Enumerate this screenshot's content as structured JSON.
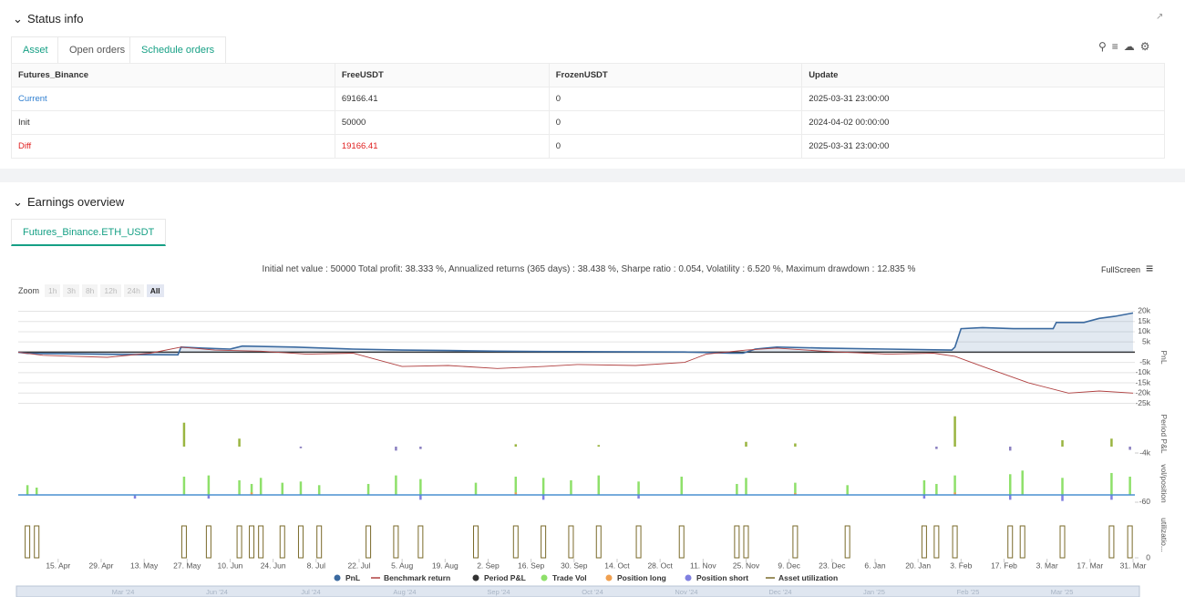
{
  "status": {
    "title": "Status info",
    "tabs": [
      "Asset",
      "Open orders",
      "Schedule orders"
    ],
    "table": {
      "header": [
        "Futures_Binance",
        "FreeUSDT",
        "FrozenUSDT",
        "Update"
      ],
      "rows": [
        [
          "Current",
          "69166.41",
          "0",
          "2025-03-31 23:00:00"
        ],
        [
          "Init",
          "50000",
          "0",
          "2024-04-02 00:00:00"
        ],
        [
          "Diff",
          "19166.41",
          "0",
          "2025-03-31 23:00:00"
        ]
      ]
    }
  },
  "earnings": {
    "title": "Earnings overview",
    "tab": "Futures_Binance.ETH_USDT",
    "summary": "Initial net value : 50000 Total profit: 38.333 %, Annualized returns (365 days) : 38.438 %, Sharpe ratio : 0.054, Volatility : 6.520 %, Maximum drawdown : 12.835 %",
    "fullscreen": "FullScreen",
    "zoom_label": "Zoom",
    "zoom_buttons": [
      "1h",
      "3h",
      "8h",
      "12h",
      "24h",
      "All"
    ],
    "navigator": [
      "Mar '24",
      "Jun '24",
      "Jul '24",
      "Aug '24",
      "Sep '24",
      "Oct '24",
      "Nov '24",
      "Dec '24",
      "Jan '25",
      "Feb '25",
      "Mar '25"
    ]
  },
  "chart_data": [
    {
      "type": "line",
      "ylabel": "PnL",
      "ylim": [
        -27000,
        22000
      ],
      "grid": true,
      "yticks": [
        {
          "value": 20000,
          "label": "20k"
        },
        {
          "value": 15000,
          "label": "15k"
        },
        {
          "value": 10000,
          "label": "10k"
        },
        {
          "value": 5000,
          "label": "5k"
        },
        {
          "value": -5000,
          "label": "-5k"
        },
        {
          "value": -10000,
          "label": "-10k"
        },
        {
          "value": -15000,
          "label": "-15k"
        },
        {
          "value": -20000,
          "label": "-20k"
        },
        {
          "value": -25000,
          "label": "-25k"
        }
      ],
      "series": [
        {
          "name": "PnL",
          "color": "#3b6aa0",
          "area": true,
          "legend_symbol": "circle",
          "x": [
            "2024-04-02",
            "2024-04-05",
            "2024-05-10",
            "2024-05-24",
            "2024-05-25",
            "2024-06-01",
            "2024-06-10",
            "2024-06-14",
            "2024-07-01",
            "2024-07-20",
            "2024-08-05",
            "2024-08-20",
            "2024-09-05",
            "2024-09-20",
            "2024-10-10",
            "2024-11-05",
            "2024-11-20",
            "2024-11-24",
            "2024-11-28",
            "2024-12-05",
            "2024-12-20",
            "2025-01-10",
            "2025-01-31",
            "2025-02-01",
            "2025-02-03",
            "2025-02-10",
            "2025-02-20",
            "2025-03-05",
            "2025-03-06",
            "2025-03-15",
            "2025-03-20",
            "2025-03-25",
            "2025-03-31"
          ],
          "values": [
            0,
            -600,
            -1200,
            -1300,
            2500,
            2000,
            1500,
            3000,
            2500,
            1500,
            1000,
            800,
            500,
            300,
            200,
            100,
            -500,
            -500,
            1500,
            2500,
            2000,
            1500,
            1000,
            2500,
            11500,
            12000,
            11500,
            11500,
            14500,
            14500,
            16500,
            17500,
            19166
          ]
        },
        {
          "name": "Benchmark return",
          "color": "#b04040",
          "legend_symbol": "line",
          "x": [
            "2024-04-02",
            "2024-04-10",
            "2024-04-20",
            "2024-05-01",
            "2024-05-15",
            "2024-05-25",
            "2024-06-05",
            "2024-06-20",
            "2024-07-05",
            "2024-07-20",
            "2024-08-05",
            "2024-08-20",
            "2024-09-05",
            "2024-09-20",
            "2024-10-01",
            "2024-10-20",
            "2024-11-05",
            "2024-11-12",
            "2024-11-25",
            "2024-12-05",
            "2024-12-20",
            "2025-01-10",
            "2025-01-25",
            "2025-02-01",
            "2025-02-10",
            "2025-02-25",
            "2025-03-10",
            "2025-03-20",
            "2025-03-31"
          ],
          "values": [
            0,
            -1500,
            -2000,
            -2500,
            -500,
            2500,
            1000,
            500,
            -1000,
            -500,
            -7000,
            -6500,
            -8000,
            -7000,
            -6000,
            -6500,
            -5000,
            -1000,
            1000,
            2000,
            500,
            -1000,
            -500,
            -2000,
            -7000,
            -15000,
            -20000,
            -19000,
            -20000
          ]
        }
      ]
    },
    {
      "type": "bar",
      "ylabel": "Period P&L",
      "ylim": [
        -5700,
        21700
      ],
      "yticks": [
        {
          "value": -4000,
          "label": "-4k"
        }
      ],
      "series": [
        {
          "name": "Period P&L",
          "color": "#333333",
          "up_color": "#9ab541",
          "down_color": "#8a7fc0",
          "legend_symbol": "circle",
          "x": [
            "2024-05-26",
            "2024-06-13",
            "2024-07-03",
            "2024-08-03",
            "2024-08-11",
            "2024-09-11",
            "2024-10-08",
            "2024-11-25",
            "2024-12-11",
            "2025-01-26",
            "2025-02-01",
            "2025-02-19",
            "2025-03-08",
            "2025-03-24",
            "2025-03-30"
          ],
          "values": [
            15000,
            5000,
            -1000,
            -2500,
            -1500,
            1500,
            1000,
            3000,
            2000,
            -1500,
            19000,
            -2500,
            4000,
            5000,
            -2000
          ]
        }
      ]
    },
    {
      "type": "bar",
      "ylabel": "vol/position",
      "ylim": [
        -90,
        277
      ],
      "yticks": [
        -60
      ],
      "series": [
        {
          "name": "Trade Vol",
          "color": "#8ee06a",
          "legend_symbol": "circle",
          "x": [
            "2024-04-05",
            "2024-04-08",
            "2024-05-26",
            "2024-06-03",
            "2024-06-13",
            "2024-06-17",
            "2024-06-20",
            "2024-06-27",
            "2024-07-03",
            "2024-07-09",
            "2024-07-25",
            "2024-08-03",
            "2024-08-11",
            "2024-08-29",
            "2024-09-11",
            "2024-09-20",
            "2024-09-29",
            "2024-10-08",
            "2024-10-21",
            "2024-11-04",
            "2024-11-22",
            "2024-11-25",
            "2024-12-11",
            "2024-12-28",
            "2025-01-22",
            "2025-01-26",
            "2025-02-01",
            "2025-02-19",
            "2025-02-23",
            "2025-03-08",
            "2025-03-24",
            "2025-03-30"
          ],
          "values": [
            80,
            60,
            150,
            160,
            120,
            90,
            140,
            100,
            110,
            80,
            90,
            160,
            130,
            100,
            150,
            140,
            120,
            160,
            110,
            150,
            90,
            140,
            100,
            80,
            120,
            90,
            160,
            170,
            200,
            140,
            180,
            150
          ]
        },
        {
          "name": "Position long",
          "color": "#f0a050",
          "legend_symbol": "circle",
          "x": [
            "2024-06-17",
            "2024-09-11",
            "2024-12-11",
            "2025-02-01"
          ],
          "values": [
            20,
            20,
            15,
            20
          ]
        },
        {
          "name": "Position short",
          "color": "#8080e0",
          "legend_symbol": "circle",
          "x": [
            "2024-05-10",
            "2024-06-03",
            "2024-08-11",
            "2024-09-20",
            "2024-10-21",
            "2025-01-22",
            "2025-02-19",
            "2025-03-08",
            "2025-03-24"
          ],
          "values": [
            -30,
            -30,
            -40,
            -40,
            -30,
            -30,
            -40,
            -50,
            -40
          ]
        }
      ]
    },
    {
      "type": "bar",
      "ylabel": "utilizatio...",
      "ylim": [
        0,
        100
      ],
      "yticks": [
        0
      ],
      "xlim": [
        "2024-04-02",
        "2025-03-31"
      ],
      "xticks": [
        {
          "value": "2024-04-15",
          "label": "15. Apr"
        },
        {
          "value": "2024-04-29",
          "label": "29. Apr"
        },
        {
          "value": "2024-05-13",
          "label": "13. May"
        },
        {
          "value": "2024-05-27",
          "label": "27. May"
        },
        {
          "value": "2024-06-10",
          "label": "10. Jun"
        },
        {
          "value": "2024-06-24",
          "label": "24. Jun"
        },
        {
          "value": "2024-07-08",
          "label": "8. Jul"
        },
        {
          "value": "2024-07-22",
          "label": "22. Jul"
        },
        {
          "value": "2024-08-05",
          "label": "5. Aug"
        },
        {
          "value": "2024-08-19",
          "label": "19. Aug"
        },
        {
          "value": "2024-09-02",
          "label": "2. Sep"
        },
        {
          "value": "2024-09-16",
          "label": "16. Sep"
        },
        {
          "value": "2024-09-30",
          "label": "30. Sep"
        },
        {
          "value": "2024-10-14",
          "label": "14. Oct"
        },
        {
          "value": "2024-10-28",
          "label": "28. Oct"
        },
        {
          "value": "2024-11-11",
          "label": "11. Nov"
        },
        {
          "value": "2024-11-25",
          "label": "25. Nov"
        },
        {
          "value": "2024-12-09",
          "label": "9. Dec"
        },
        {
          "value": "2024-12-23",
          "label": "23. Dec"
        },
        {
          "value": "2025-01-06",
          "label": "6. Jan"
        },
        {
          "value": "2025-01-20",
          "label": "20. Jan"
        },
        {
          "value": "2025-02-03",
          "label": "3. Feb"
        },
        {
          "value": "2025-02-17",
          "label": "17. Feb"
        },
        {
          "value": "2025-03-03",
          "label": "3. Mar"
        },
        {
          "value": "2025-03-17",
          "label": "17. Mar"
        },
        {
          "value": "2025-03-31",
          "label": "31. Mar"
        }
      ],
      "series": [
        {
          "name": "Asset utilization",
          "color": "#7a6a2a",
          "outline": true,
          "legend_symbol": "line",
          "x": [
            "2024-04-05",
            "2024-04-08",
            "2024-05-26",
            "2024-06-03",
            "2024-06-13",
            "2024-06-17",
            "2024-06-20",
            "2024-06-27",
            "2024-07-03",
            "2024-07-09",
            "2024-07-25",
            "2024-08-03",
            "2024-08-11",
            "2024-08-29",
            "2024-09-11",
            "2024-09-20",
            "2024-09-29",
            "2024-10-08",
            "2024-10-21",
            "2024-11-04",
            "2024-11-22",
            "2024-11-25",
            "2024-12-11",
            "2024-12-28",
            "2025-01-22",
            "2025-01-26",
            "2025-02-01",
            "2025-02-19",
            "2025-02-23",
            "2025-03-08",
            "2025-03-24",
            "2025-03-30"
          ],
          "values": [
            70,
            70,
            70,
            70,
            70,
            70,
            70,
            70,
            70,
            70,
            70,
            70,
            70,
            70,
            70,
            70,
            70,
            70,
            70,
            70,
            70,
            70,
            70,
            70,
            70,
            70,
            70,
            70,
            70,
            70,
            70,
            70
          ]
        }
      ]
    }
  ]
}
